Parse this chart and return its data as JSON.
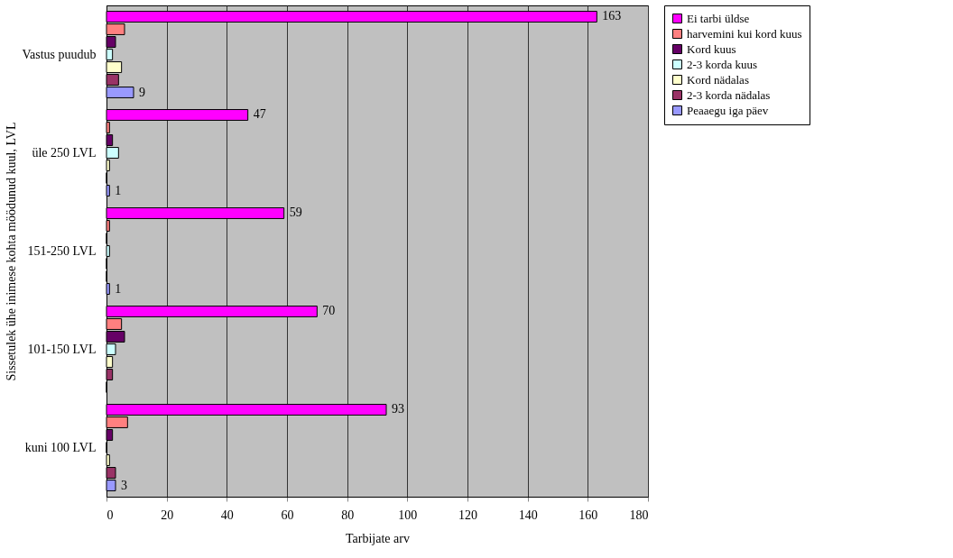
{
  "chart_data": {
    "type": "bar",
    "orientation": "horizontal",
    "ylabel": "Sissetulek ühe inimese kohta möödunud kuul, LVL",
    "xlabel": "Tarbijate arv",
    "categories": [
      "Vastus puudub",
      "üle 250 LVL",
      "151-250 LVL",
      "101-150 LVL",
      "kuni 100 LVL"
    ],
    "series": [
      {
        "name": "Ei tarbi üldse",
        "color": "#ff00ff",
        "values": [
          163,
          47,
          59,
          70,
          93
        ],
        "value_labels": [
          "163",
          "47",
          "59",
          "70",
          "93"
        ]
      },
      {
        "name": "harvemini kui kord kuus",
        "color": "#ff8080",
        "values": [
          6,
          1,
          1,
          5,
          7
        ]
      },
      {
        "name": "Kord kuus",
        "color": "#660066",
        "values": [
          3,
          2,
          0,
          6,
          2
        ]
      },
      {
        "name": "2-3 korda kuus",
        "color": "#ccffff",
        "values": [
          2,
          4,
          1,
          3,
          0
        ]
      },
      {
        "name": "Kord nädalas",
        "color": "#ffffcc",
        "values": [
          5,
          1,
          0,
          2,
          1
        ]
      },
      {
        "name": "2-3 korda nädalas",
        "color": "#993366",
        "values": [
          4,
          0,
          0,
          2,
          3
        ]
      },
      {
        "name": "Peaaegu iga päev",
        "color": "#9999ff",
        "values": [
          9,
          1,
          1,
          0,
          3
        ],
        "value_labels": [
          "9",
          "1",
          "1",
          null,
          "3"
        ]
      }
    ],
    "xlim": [
      0,
      180
    ],
    "xticks": [
      0,
      20,
      40,
      60,
      80,
      100,
      120,
      140,
      160,
      180
    ],
    "grid": "x",
    "legend": "right"
  }
}
